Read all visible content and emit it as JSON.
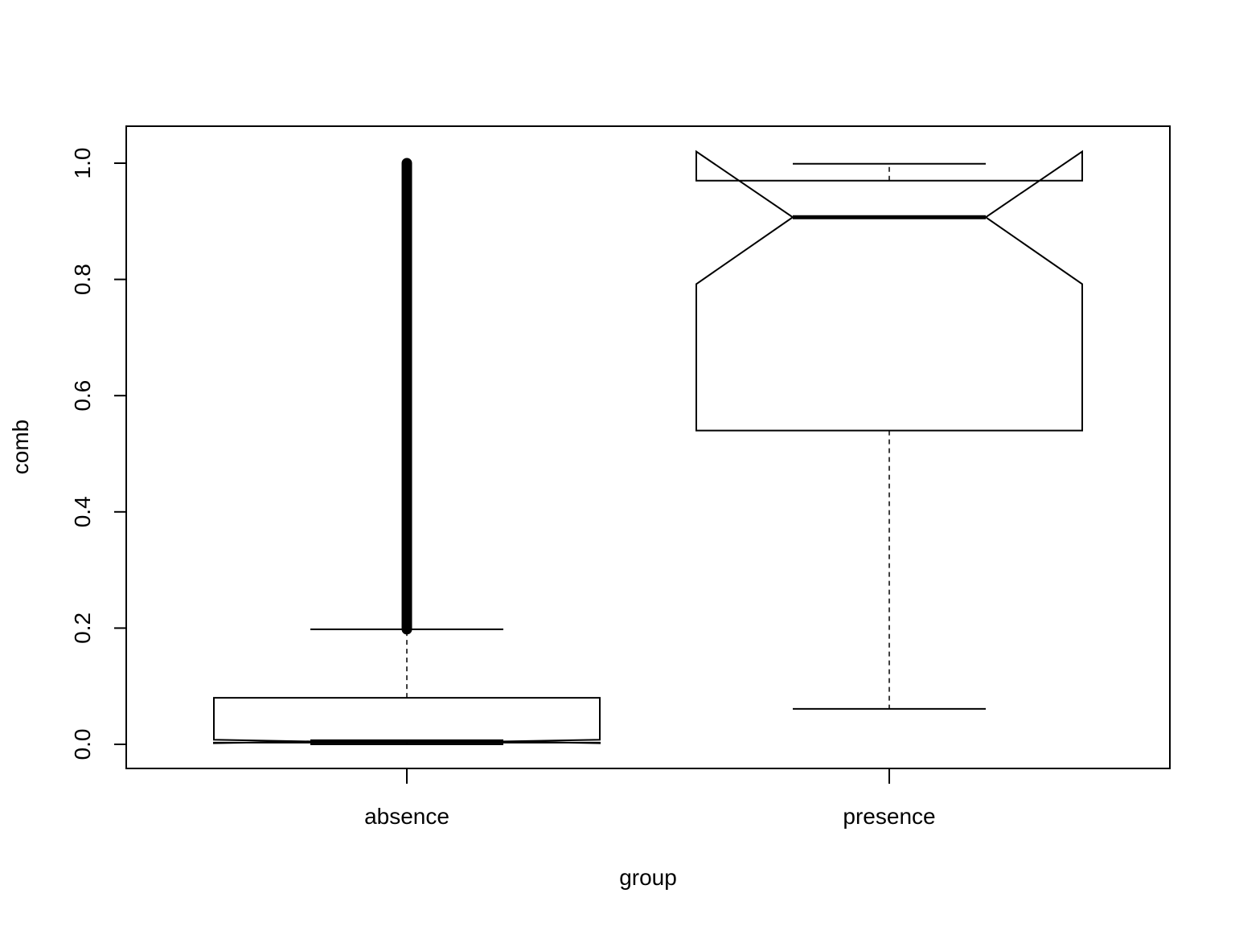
{
  "chart_data": {
    "type": "boxplot",
    "notched": true,
    "xlabel": "group",
    "ylabel": "comb",
    "categories": [
      "absence",
      "presence"
    ],
    "ylim": [
      -0.04,
      1.06
    ],
    "y_ticks": [
      0.0,
      0.2,
      0.4,
      0.6,
      0.8,
      1.0
    ],
    "y_tick_labels": [
      "0.0",
      "0.2",
      "0.4",
      "0.6",
      "0.8",
      "1.0"
    ],
    "boxes": [
      {
        "name": "absence",
        "lower_whisker": 0.0,
        "q1": 0.003,
        "median": 0.005,
        "q3": 0.08,
        "upper_whisker": 0.198,
        "notch_low": 0.002,
        "notch_high": 0.008,
        "outliers_range": [
          0.198,
          1.0
        ]
      },
      {
        "name": "presence",
        "lower_whisker": 0.061,
        "q1": 0.54,
        "median": 0.907,
        "q3": 0.97,
        "upper_whisker": 0.999,
        "notch_low": 0.792,
        "notch_high": 1.02
      }
    ],
    "grid": false,
    "legend": "none"
  }
}
